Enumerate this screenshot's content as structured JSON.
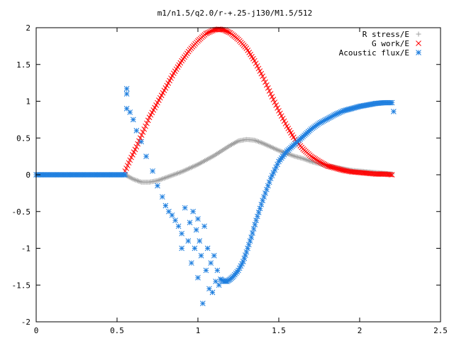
{
  "chart_data": {
    "type": "scatter",
    "title": "m1/n1.5/q2.0/r-+.25-j130/M1.5/512",
    "xlabel": "",
    "ylabel": "",
    "xlim": [
      0,
      2.5
    ],
    "ylim": [
      -2,
      2
    ],
    "x_ticks": [
      0,
      0.5,
      1,
      1.5,
      2,
      2.5
    ],
    "x_tick_labels": [
      "0",
      "0.5",
      "1",
      "1.5",
      "2",
      "2.5"
    ],
    "y_ticks": [
      -2,
      -1.5,
      -1,
      -0.5,
      0,
      0.5,
      1,
      1.5,
      2
    ],
    "y_tick_labels": [
      "-2",
      "-1.5",
      "-1",
      "-0.5",
      "0",
      "0.5",
      "1",
      "1.5",
      "2"
    ],
    "grid": false,
    "legend_position": "top-right",
    "series": [
      {
        "name": "R stress/E",
        "marker": "plus",
        "color": "#a0a0a0",
        "points": [
          [
            0.55,
            0.0
          ],
          [
            0.6,
            -0.06
          ],
          [
            0.65,
            -0.1
          ],
          [
            0.7,
            -0.1
          ],
          [
            0.75,
            -0.08
          ],
          [
            0.8,
            -0.04
          ],
          [
            0.85,
            0.0
          ],
          [
            0.9,
            0.04
          ],
          [
            0.95,
            0.09
          ],
          [
            1.0,
            0.14
          ],
          [
            1.05,
            0.2
          ],
          [
            1.1,
            0.26
          ],
          [
            1.15,
            0.33
          ],
          [
            1.2,
            0.4
          ],
          [
            1.25,
            0.46
          ],
          [
            1.3,
            0.48
          ],
          [
            1.35,
            0.47
          ],
          [
            1.4,
            0.43
          ],
          [
            1.45,
            0.38
          ],
          [
            1.5,
            0.33
          ],
          [
            1.55,
            0.29
          ],
          [
            1.6,
            0.25
          ],
          [
            1.65,
            0.22
          ],
          [
            1.7,
            0.18
          ],
          [
            1.75,
            0.15
          ],
          [
            1.8,
            0.12
          ],
          [
            1.85,
            0.1
          ],
          [
            1.9,
            0.08
          ],
          [
            1.95,
            0.06
          ],
          [
            2.0,
            0.05
          ],
          [
            2.05,
            0.04
          ],
          [
            2.1,
            0.03
          ],
          [
            2.15,
            0.02
          ],
          [
            2.2,
            0.01
          ]
        ]
      },
      {
        "name": "G work/E",
        "marker": "cross",
        "color": "#ff0000",
        "points": [
          [
            0.55,
            0.05
          ],
          [
            0.58,
            0.2
          ],
          [
            0.62,
            0.38
          ],
          [
            0.66,
            0.58
          ],
          [
            0.7,
            0.78
          ],
          [
            0.75,
            0.98
          ],
          [
            0.8,
            1.18
          ],
          [
            0.85,
            1.38
          ],
          [
            0.9,
            1.55
          ],
          [
            0.95,
            1.7
          ],
          [
            1.0,
            1.82
          ],
          [
            1.05,
            1.92
          ],
          [
            1.1,
            1.97
          ],
          [
            1.13,
            1.98
          ],
          [
            1.16,
            1.97
          ],
          [
            1.2,
            1.93
          ],
          [
            1.25,
            1.84
          ],
          [
            1.3,
            1.72
          ],
          [
            1.35,
            1.55
          ],
          [
            1.4,
            1.34
          ],
          [
            1.45,
            1.1
          ],
          [
            1.5,
            0.87
          ],
          [
            1.55,
            0.66
          ],
          [
            1.6,
            0.48
          ],
          [
            1.65,
            0.35
          ],
          [
            1.7,
            0.25
          ],
          [
            1.75,
            0.18
          ],
          [
            1.8,
            0.12
          ],
          [
            1.85,
            0.09
          ],
          [
            1.9,
            0.06
          ],
          [
            1.95,
            0.04
          ],
          [
            2.0,
            0.03
          ],
          [
            2.05,
            0.02
          ],
          [
            2.1,
            0.01
          ],
          [
            2.15,
            0.01
          ],
          [
            2.2,
            0.0
          ]
        ]
      },
      {
        "name": "Acoustic flux/E",
        "marker": "star",
        "color": "#1f7fdf",
        "points": [
          [
            0.0,
            0.0
          ],
          [
            0.05,
            0.0
          ],
          [
            0.1,
            0.0
          ],
          [
            0.15,
            0.0
          ],
          [
            0.2,
            0.0
          ],
          [
            0.25,
            0.0
          ],
          [
            0.3,
            0.0
          ],
          [
            0.35,
            0.0
          ],
          [
            0.4,
            0.0
          ],
          [
            0.45,
            0.0
          ],
          [
            0.5,
            0.0
          ],
          [
            0.55,
            0.0
          ],
          [
            0.56,
            1.17
          ],
          [
            0.56,
            1.1
          ],
          [
            0.56,
            0.9
          ],
          [
            0.58,
            0.85
          ],
          [
            0.6,
            0.75
          ],
          [
            0.62,
            0.6
          ],
          [
            0.65,
            0.45
          ],
          [
            0.68,
            0.25
          ],
          [
            0.72,
            0.05
          ],
          [
            0.75,
            -0.15
          ],
          [
            0.78,
            -0.3
          ],
          [
            0.8,
            -0.42
          ],
          [
            0.82,
            -0.5
          ],
          [
            0.84,
            -0.55
          ],
          [
            0.86,
            -0.62
          ],
          [
            0.88,
            -0.7
          ],
          [
            0.9,
            -0.8
          ],
          [
            0.9,
            -1.0
          ],
          [
            0.92,
            -0.45
          ],
          [
            0.94,
            -0.9
          ],
          [
            0.95,
            -0.65
          ],
          [
            0.96,
            -1.2
          ],
          [
            0.97,
            -0.5
          ],
          [
            0.98,
            -1.0
          ],
          [
            0.99,
            -0.75
          ],
          [
            1.0,
            -1.4
          ],
          [
            1.0,
            -0.6
          ],
          [
            1.01,
            -0.9
          ],
          [
            1.02,
            -1.1
          ],
          [
            1.03,
            -1.75
          ],
          [
            1.04,
            -0.7
          ],
          [
            1.05,
            -1.3
          ],
          [
            1.06,
            -1.0
          ],
          [
            1.07,
            -1.55
          ],
          [
            1.08,
            -1.2
          ],
          [
            1.09,
            -1.6
          ],
          [
            1.1,
            -1.1
          ],
          [
            1.11,
            -1.45
          ],
          [
            1.12,
            -1.3
          ],
          [
            1.13,
            -1.5
          ],
          [
            1.14,
            -1.42
          ],
          [
            1.16,
            -1.45
          ],
          [
            1.18,
            -1.45
          ],
          [
            1.2,
            -1.42
          ],
          [
            1.22,
            -1.38
          ],
          [
            1.25,
            -1.3
          ],
          [
            1.28,
            -1.18
          ],
          [
            1.3,
            -1.05
          ],
          [
            1.33,
            -0.85
          ],
          [
            1.36,
            -0.62
          ],
          [
            1.4,
            -0.35
          ],
          [
            1.45,
            -0.05
          ],
          [
            1.5,
            0.18
          ],
          [
            1.55,
            0.32
          ],
          [
            1.6,
            0.42
          ],
          [
            1.65,
            0.52
          ],
          [
            1.7,
            0.62
          ],
          [
            1.75,
            0.7
          ],
          [
            1.8,
            0.76
          ],
          [
            1.85,
            0.82
          ],
          [
            1.9,
            0.87
          ],
          [
            1.95,
            0.9
          ],
          [
            2.0,
            0.93
          ],
          [
            2.05,
            0.95
          ],
          [
            2.1,
            0.97
          ],
          [
            2.15,
            0.98
          ],
          [
            2.2,
            0.98
          ],
          [
            2.21,
            0.86
          ]
        ]
      }
    ]
  }
}
